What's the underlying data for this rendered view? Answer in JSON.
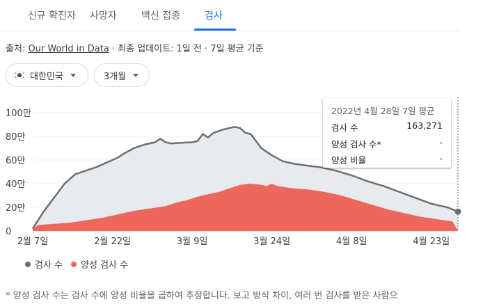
{
  "tabs": [
    {
      "label": "신규 확진자"
    },
    {
      "label": "사망자"
    },
    {
      "label": "백신 접종"
    },
    {
      "label": "검사"
    }
  ],
  "source": {
    "prefix": "출처: ",
    "link_text": "Our World in Data",
    "suffix": " · 최종 업데이트: 1일 전 · 7일 평균 기준"
  },
  "filters": {
    "country": "대한민국",
    "period": "3개월"
  },
  "colors": {
    "tests_line": "#6b6f73",
    "tests_fill": "#e8eaee",
    "positive_fill": "#ee675c",
    "tab_active": "#1a73e8"
  },
  "tooltip": {
    "title": "2022년 4월 28일 7일 평균",
    "rows": [
      {
        "label": "검사 수",
        "value": "163,271"
      },
      {
        "label": "양성 검사 수*",
        "value": "-"
      },
      {
        "label": "양성 비율",
        "value": "-"
      }
    ]
  },
  "legend": [
    {
      "label": "검사 수"
    },
    {
      "label": "양성 검사 수"
    }
  ],
  "footnote": "* 양성 검사 수는 검사 수에 양성 비율을 곱하여 추정합니다. 보고 방식 차이, 여러 번 검사를 받은 사람으",
  "chart_data": {
    "type": "area",
    "x_start": "2022-02-07",
    "x_end": "2022-04-28",
    "xticks": [
      {
        "date": "2022-02-07",
        "label": "2월 7일"
      },
      {
        "date": "2022-02-22",
        "label": "2월 22일"
      },
      {
        "date": "2022-03-09",
        "label": "3월 9일"
      },
      {
        "date": "2022-03-24",
        "label": "3월 24일"
      },
      {
        "date": "2022-04-08",
        "label": "4월 8일"
      },
      {
        "date": "2022-04-23",
        "label": "4월 23일"
      }
    ],
    "yticks": [
      {
        "value": 0,
        "label": "0"
      },
      {
        "value": 200000,
        "label": "20만"
      },
      {
        "value": 400000,
        "label": "40만"
      },
      {
        "value": 600000,
        "label": "60만"
      },
      {
        "value": 800000,
        "label": "80만"
      },
      {
        "value": 1000000,
        "label": "100만"
      }
    ],
    "ylim": [
      0,
      1000000
    ],
    "series": [
      {
        "name": "검사 수",
        "points": [
          [
            "2022-02-07",
            20000
          ],
          [
            "2022-02-09",
            160000
          ],
          [
            "2022-02-11",
            280000
          ],
          [
            "2022-02-13",
            400000
          ],
          [
            "2022-02-15",
            480000
          ],
          [
            "2022-02-17",
            510000
          ],
          [
            "2022-02-19",
            540000
          ],
          [
            "2022-02-21",
            580000
          ],
          [
            "2022-02-23",
            620000
          ],
          [
            "2022-02-24",
            650000
          ],
          [
            "2022-02-26",
            700000
          ],
          [
            "2022-02-28",
            730000
          ],
          [
            "2022-03-02",
            750000
          ],
          [
            "2022-03-03",
            780000
          ],
          [
            "2022-03-04",
            750000
          ],
          [
            "2022-03-05",
            740000
          ],
          [
            "2022-03-07",
            745000
          ],
          [
            "2022-03-09",
            750000
          ],
          [
            "2022-03-10",
            760000
          ],
          [
            "2022-03-11",
            820000
          ],
          [
            "2022-03-12",
            790000
          ],
          [
            "2022-03-13",
            830000
          ],
          [
            "2022-03-15",
            860000
          ],
          [
            "2022-03-17",
            880000
          ],
          [
            "2022-03-18",
            870000
          ],
          [
            "2022-03-19",
            830000
          ],
          [
            "2022-03-20",
            820000
          ],
          [
            "2022-03-21",
            760000
          ],
          [
            "2022-03-22",
            700000
          ],
          [
            "2022-03-24",
            640000
          ],
          [
            "2022-03-26",
            590000
          ],
          [
            "2022-03-28",
            570000
          ],
          [
            "2022-03-31",
            550000
          ],
          [
            "2022-04-02",
            540000
          ],
          [
            "2022-04-05",
            510000
          ],
          [
            "2022-04-08",
            470000
          ],
          [
            "2022-04-11",
            420000
          ],
          [
            "2022-04-14",
            380000
          ],
          [
            "2022-04-17",
            330000
          ],
          [
            "2022-04-20",
            280000
          ],
          [
            "2022-04-23",
            230000
          ],
          [
            "2022-04-26",
            200000
          ],
          [
            "2022-04-28",
            163271
          ]
        ]
      },
      {
        "name": "양성 검사 수",
        "points": [
          [
            "2022-02-07",
            20000
          ],
          [
            "2022-02-08",
            50000
          ],
          [
            "2022-02-11",
            60000
          ],
          [
            "2022-02-14",
            70000
          ],
          [
            "2022-02-17",
            90000
          ],
          [
            "2022-02-20",
            110000
          ],
          [
            "2022-02-23",
            140000
          ],
          [
            "2022-02-26",
            170000
          ],
          [
            "2022-03-01",
            190000
          ],
          [
            "2022-03-04",
            210000
          ],
          [
            "2022-03-06",
            240000
          ],
          [
            "2022-03-08",
            260000
          ],
          [
            "2022-03-10",
            290000
          ],
          [
            "2022-03-12",
            310000
          ],
          [
            "2022-03-14",
            330000
          ],
          [
            "2022-03-16",
            360000
          ],
          [
            "2022-03-18",
            390000
          ],
          [
            "2022-03-20",
            400000
          ],
          [
            "2022-03-22",
            390000
          ],
          [
            "2022-03-23",
            380000
          ],
          [
            "2022-03-24",
            400000
          ],
          [
            "2022-03-25",
            380000
          ],
          [
            "2022-03-28",
            360000
          ],
          [
            "2022-03-31",
            350000
          ],
          [
            "2022-04-03",
            330000
          ],
          [
            "2022-04-06",
            300000
          ],
          [
            "2022-04-09",
            260000
          ],
          [
            "2022-04-12",
            220000
          ],
          [
            "2022-04-15",
            180000
          ],
          [
            "2022-04-18",
            150000
          ],
          [
            "2022-04-21",
            120000
          ],
          [
            "2022-04-24",
            100000
          ],
          [
            "2022-04-27",
            80000
          ],
          [
            "2022-04-28",
            0
          ]
        ]
      }
    ],
    "hover_date": "2022-04-28"
  }
}
